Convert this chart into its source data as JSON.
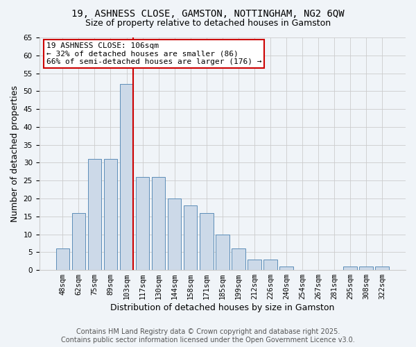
{
  "title": "19, ASHNESS CLOSE, GAMSTON, NOTTINGHAM, NG2 6QW",
  "subtitle": "Size of property relative to detached houses in Gamston",
  "xlabel": "Distribution of detached houses by size in Gamston",
  "ylabel": "Number of detached properties",
  "bar_labels": [
    "48sqm",
    "62sqm",
    "75sqm",
    "89sqm",
    "103sqm",
    "117sqm",
    "130sqm",
    "144sqm",
    "158sqm",
    "171sqm",
    "185sqm",
    "199sqm",
    "212sqm",
    "226sqm",
    "240sqm",
    "254sqm",
    "267sqm",
    "281sqm",
    "295sqm",
    "308sqm",
    "322sqm"
  ],
  "bar_values": [
    6,
    16,
    31,
    31,
    52,
    26,
    26,
    20,
    18,
    16,
    10,
    6,
    3,
    3,
    1,
    0,
    0,
    0,
    1,
    1,
    1
  ],
  "bar_color": "#ccd9e8",
  "bar_edge_color": "#5b8db8",
  "vline_x_index": 4,
  "vline_color": "#cc0000",
  "ylim": [
    0,
    65
  ],
  "yticks": [
    0,
    5,
    10,
    15,
    20,
    25,
    30,
    35,
    40,
    45,
    50,
    55,
    60,
    65
  ],
  "annotation_line1": "19 ASHNESS CLOSE: 106sqm",
  "annotation_line2": "← 32% of detached houses are smaller (86)",
  "annotation_line3": "66% of semi-detached houses are larger (176) →",
  "annotation_box_color": "#ffffff",
  "annotation_box_edge": "#cc0000",
  "footer_line1": "Contains HM Land Registry data © Crown copyright and database right 2025.",
  "footer_line2": "Contains public sector information licensed under the Open Government Licence v3.0.",
  "background_color": "#f0f4f8",
  "grid_color": "#cccccc",
  "title_fontsize": 10,
  "subtitle_fontsize": 9,
  "axis_label_fontsize": 9,
  "tick_fontsize": 7.5,
  "footer_fontsize": 7,
  "annotation_fontsize": 8
}
